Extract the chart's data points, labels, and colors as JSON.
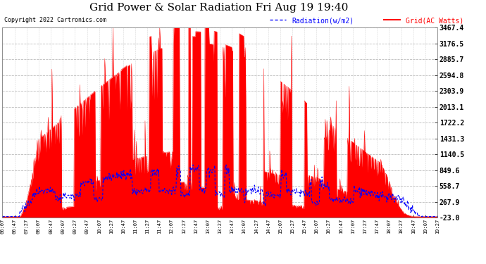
{
  "title": "Grid Power & Solar Radiation Fri Aug 19 19:40",
  "copyright": "Copyright 2022 Cartronics.com",
  "legend_radiation": "Radiation(w/m2)",
  "legend_grid": "Grid(AC Watts)",
  "yticks": [
    -23.0,
    267.9,
    558.7,
    849.6,
    1140.5,
    1431.3,
    1722.2,
    2013.1,
    2303.9,
    2594.8,
    2885.7,
    3176.5,
    3467.4
  ],
  "ymin": -23.0,
  "ymax": 3467.4,
  "title_fontsize": 11,
  "copyright_fontsize": 6,
  "legend_fontsize": 7,
  "ytick_fontsize": 7,
  "xtick_fontsize": 5,
  "radiation_color": "#0000ff",
  "grid_fill_color": "#ff0000",
  "grid_line_color": "#ff0000",
  "background_color": "#ffffff",
  "plot_bg_color": "#ffffff",
  "gridline_color": "#aaaaaa",
  "xtick_labels": [
    "06:07",
    "06:47",
    "07:27",
    "08:07",
    "08:47",
    "09:07",
    "09:27",
    "09:47",
    "10:07",
    "10:27",
    "10:47",
    "11:07",
    "11:27",
    "11:47",
    "12:07",
    "12:27",
    "12:47",
    "13:07",
    "13:27",
    "13:47",
    "14:07",
    "14:27",
    "14:47",
    "15:07",
    "15:27",
    "15:47",
    "16:07",
    "16:27",
    "16:47",
    "17:07",
    "17:27",
    "17:47",
    "18:07",
    "18:27",
    "18:47",
    "19:07",
    "19:27"
  ]
}
